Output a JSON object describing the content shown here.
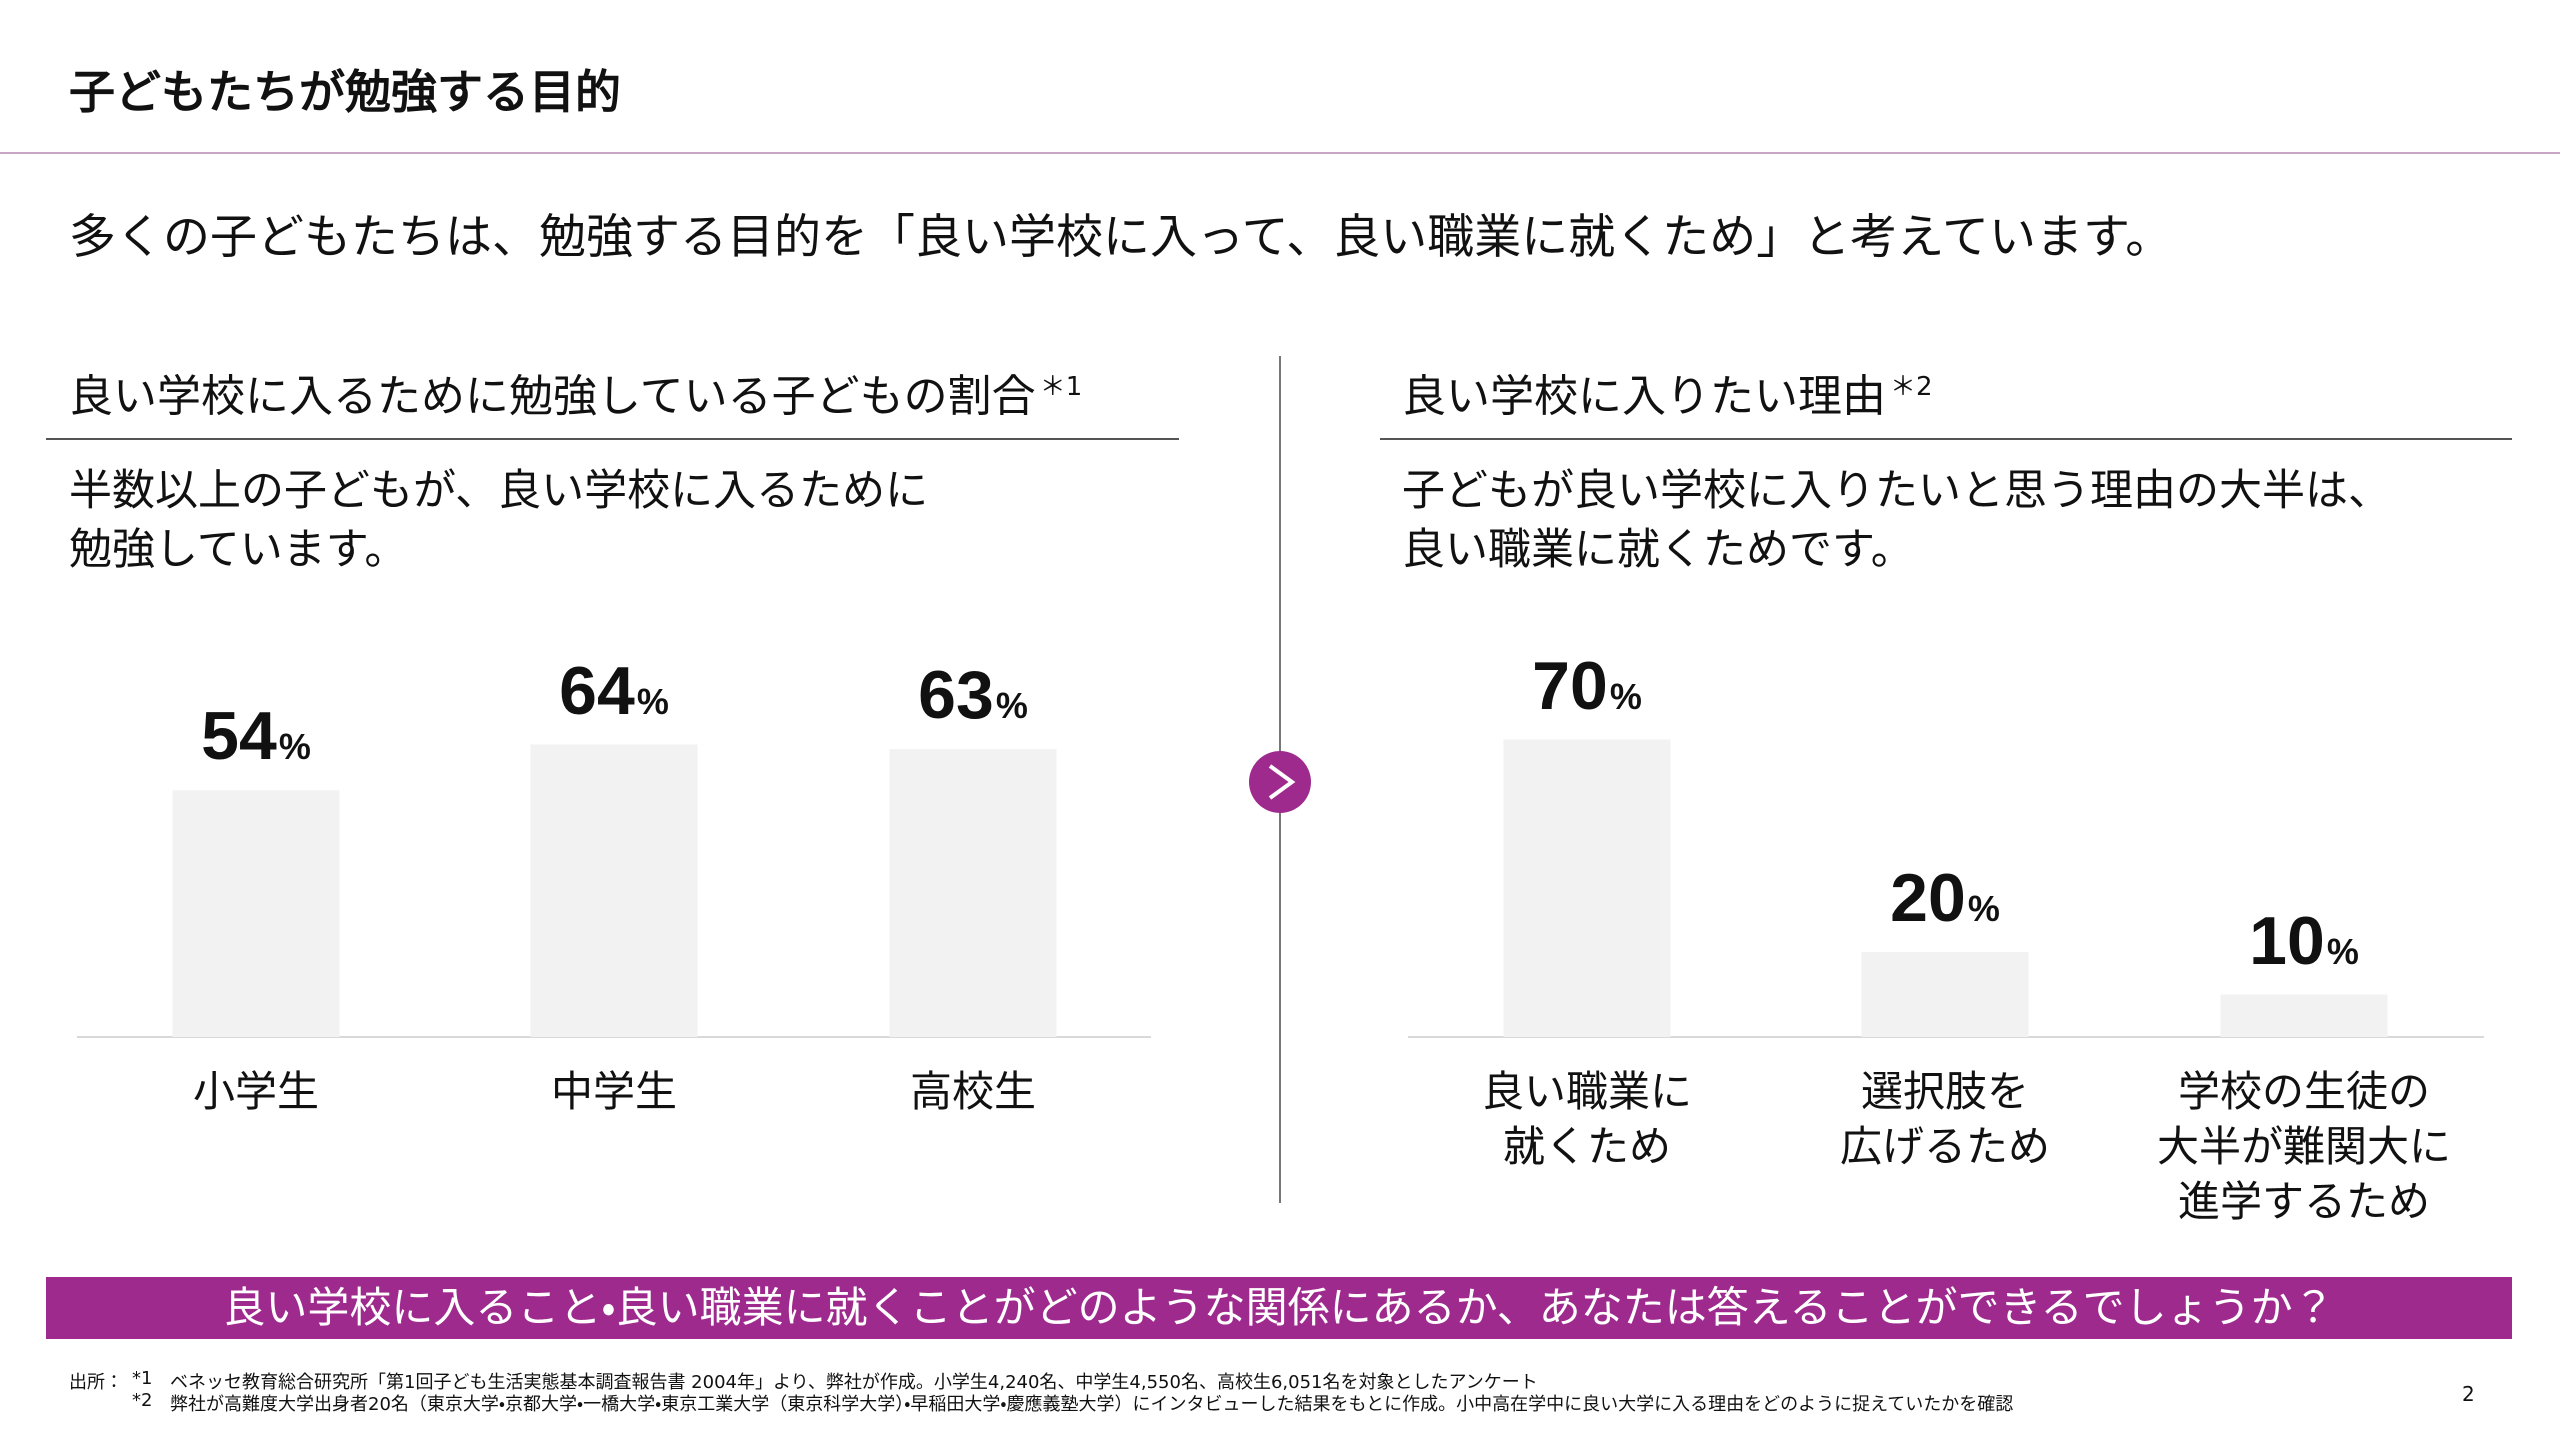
{
  "header": {
    "title": "子どもたちが勉強する目的"
  },
  "lead": "多くの子どもたちは、勉強する目的を「良い学校に入って、良い職業に就くため」と考えています。",
  "chart_data": [
    {
      "type": "bar",
      "title": "良い学校に入るために勉強している子どもの割合",
      "title_note": "＊1",
      "subtitle": "半数以上の子どもが、良い学校に入るために\n勉強しています。",
      "categories": [
        "小学生",
        "中学生",
        "高校生"
      ],
      "values": [
        54,
        64,
        63
      ],
      "value_labels": [
        "54%",
        "64%",
        "63%"
      ],
      "color": "#f2f2f2"
    },
    {
      "type": "bar",
      "title": "良い学校に入りたい理由",
      "title_note": "＊2",
      "subtitle": "子どもが良い学校に入りたいと思う理由の大半は、\n良い職業に就くためです。",
      "categories": [
        "良い職業に\n就くため",
        "選択肢を\n広げるため",
        "学校の生徒の\n大半が難関大に\n進学するため"
      ],
      "values": [
        70,
        20,
        10
      ],
      "value_labels": [
        "70%",
        "20%",
        "10%"
      ],
      "color": "#f2f2f2"
    }
  ],
  "banner": "良い学校に入ること・良い職業に就くことがどのような関係にあるか、あなたは答えることができるでしょうか？",
  "footer": {
    "source_label": "出所：",
    "notes": [
      {
        "mark": "*1",
        "text": "ベネッセ教育総合研究所「第1回子ども生活実態基本調査報告書 2004年」より、弊社が作成。小学生4,240名、中学生4,550名、高校生6,051名を対象としたアンケート"
      },
      {
        "mark": "*2",
        "text": "弊社が高難度大学出身者20名（東京大学・京都大学・一橋大学・東京工業大学（東京科学大学）・早稲田大学・慶應義塾大学）にインタビューした結果をもとに作成。小中高在学中に良い大学に入る理由をどのように捉えていたかを確認"
      }
    ]
  },
  "page_number": "2"
}
